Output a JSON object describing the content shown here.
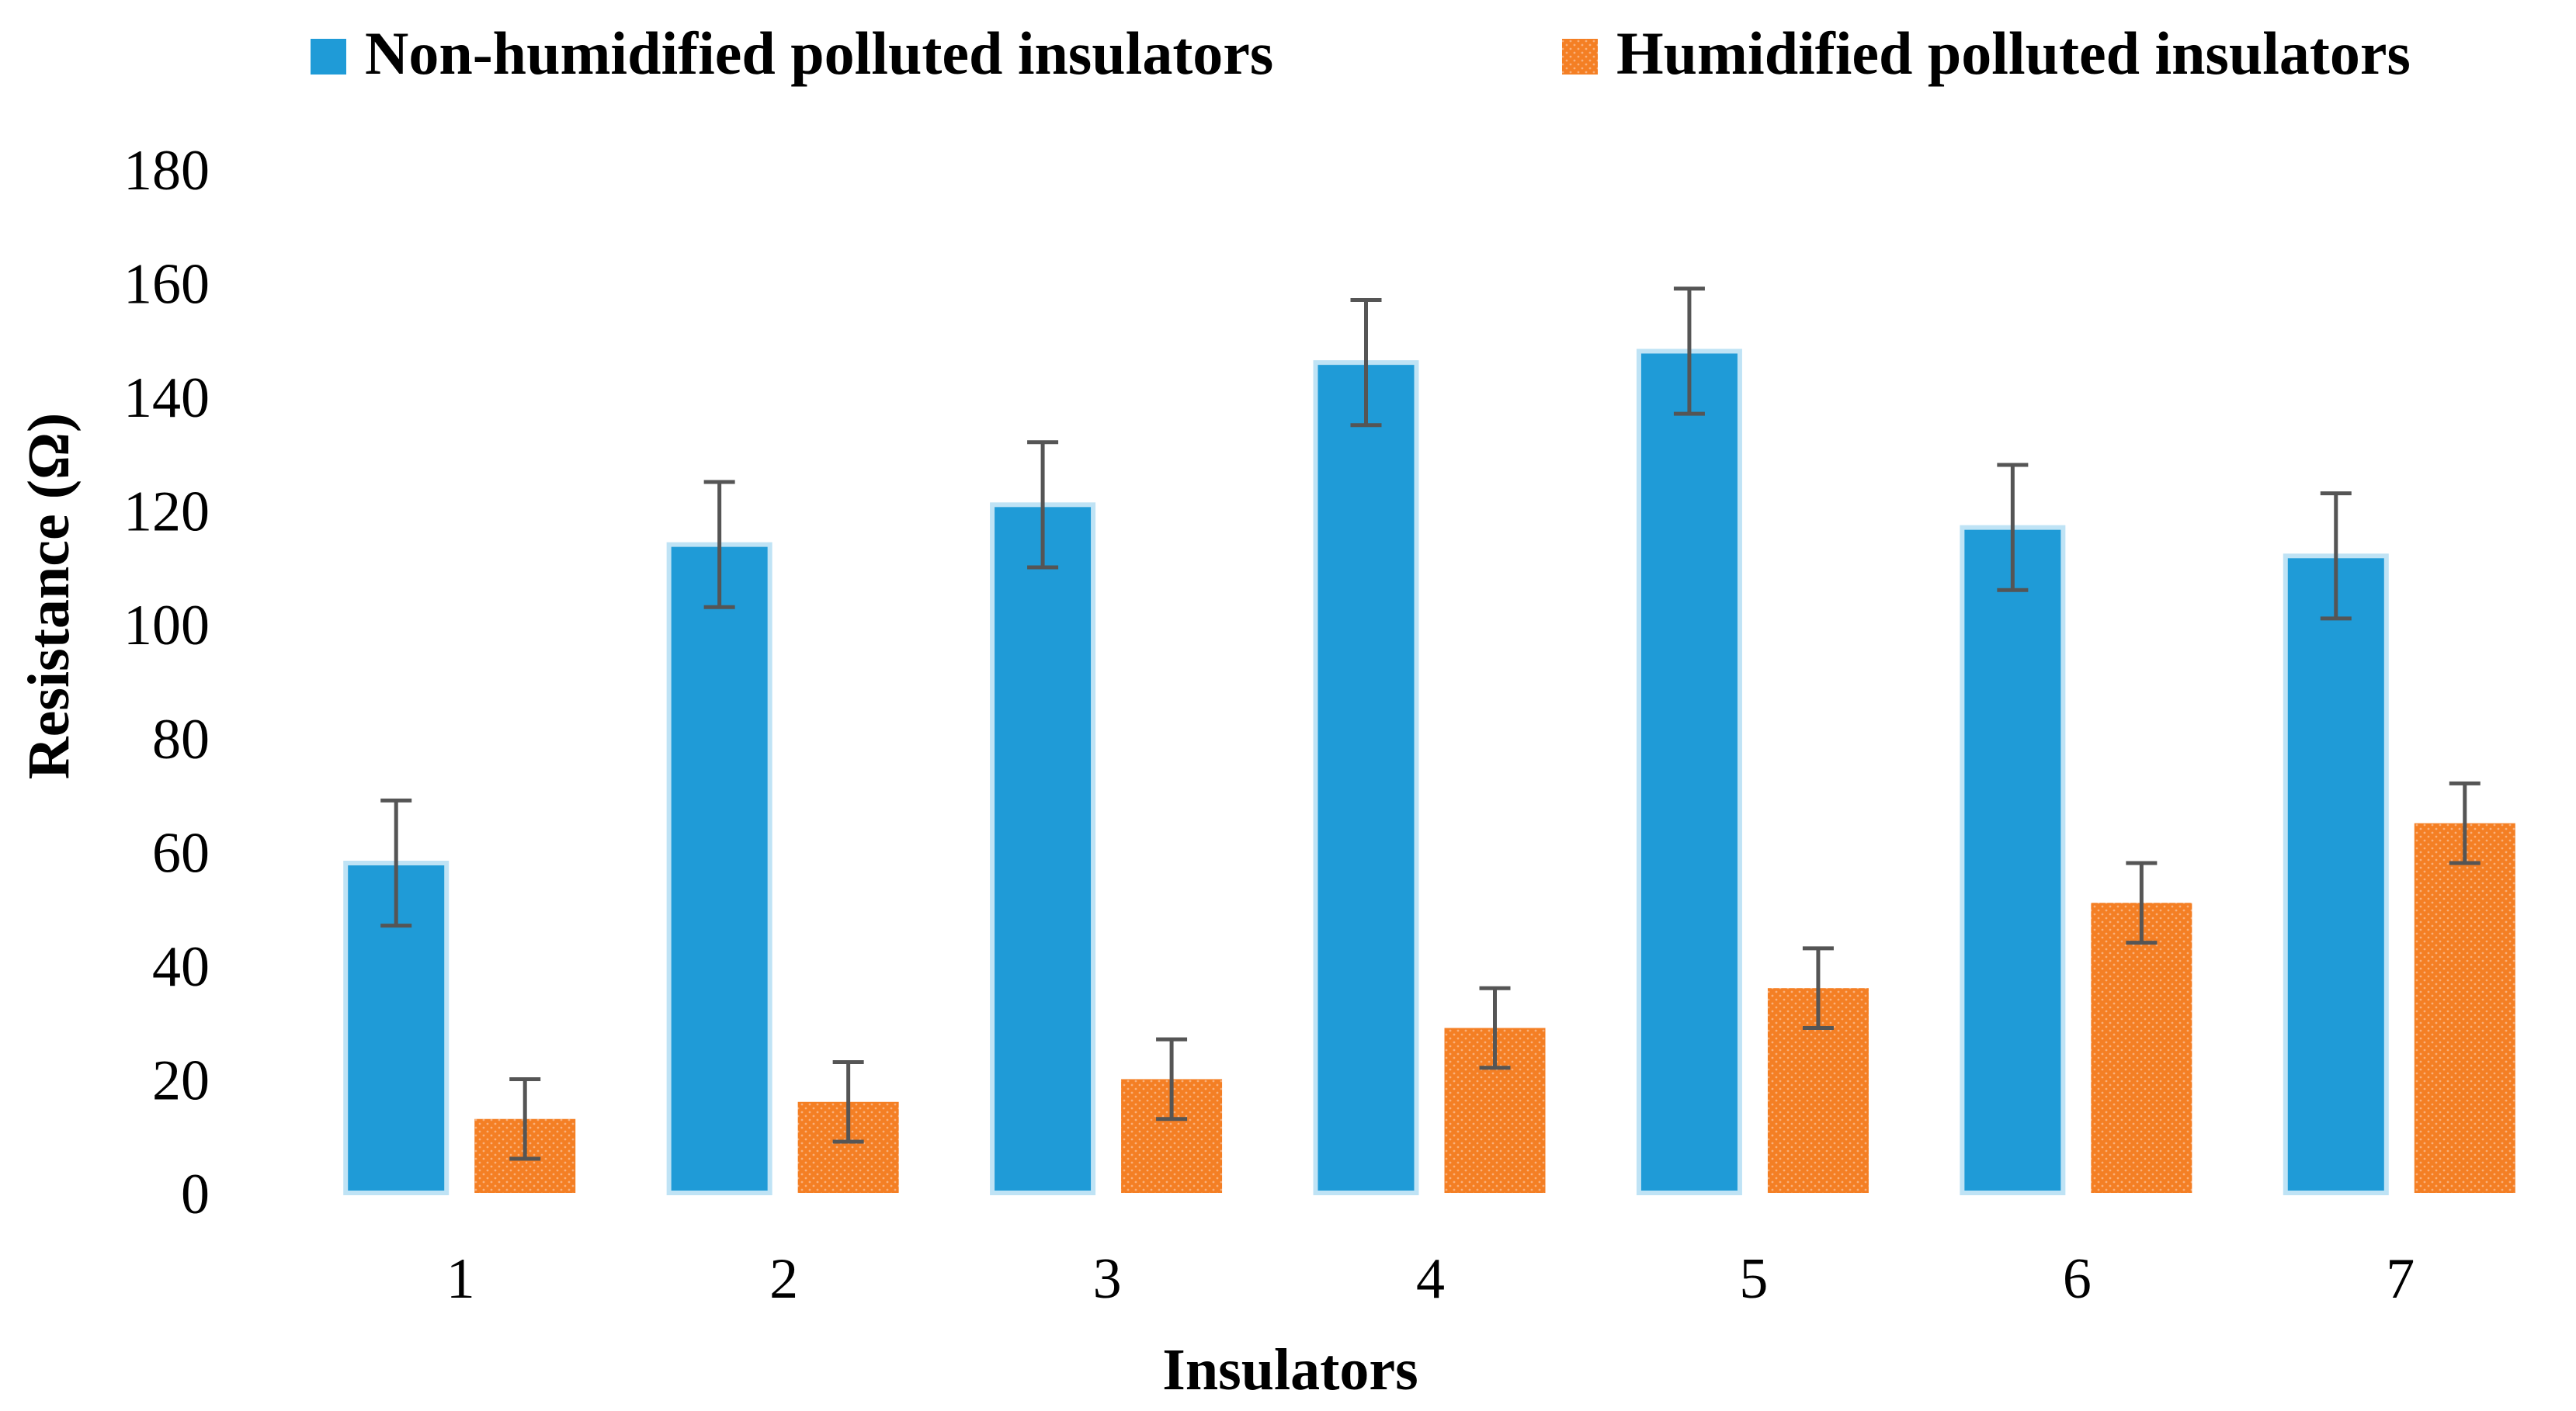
{
  "chart_data": {
    "type": "bar",
    "title": "",
    "xlabel": "Insulators",
    "ylabel": "Resistance (Ω)",
    "categories": [
      "1",
      "2",
      "3",
      "4",
      "5",
      "6",
      "7"
    ],
    "ylim": [
      0,
      180
    ],
    "yticks": [
      "0",
      "20",
      "40",
      "60",
      "80",
      "100",
      "120",
      "140",
      "160",
      "180"
    ],
    "grid": false,
    "legend_position": "top",
    "series": [
      {
        "name": "Non-humidified polluted insulators",
        "color": "#1f9bd7",
        "values": [
          58,
          114,
          121,
          146,
          148,
          117,
          112
        ],
        "errors": [
          11,
          11,
          11,
          11,
          11,
          11,
          11
        ]
      },
      {
        "name": "Humidified polluted insulators",
        "color": "#f47f24",
        "values": [
          13,
          16,
          20,
          29,
          36,
          51,
          65
        ],
        "errors": [
          7,
          7,
          7,
          7,
          7,
          7,
          7
        ]
      }
    ]
  }
}
